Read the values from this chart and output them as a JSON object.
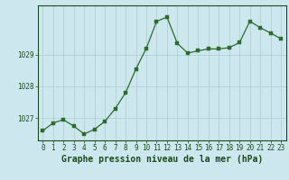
{
  "x": [
    0,
    1,
    2,
    3,
    4,
    5,
    6,
    7,
    8,
    9,
    10,
    11,
    12,
    13,
    14,
    15,
    16,
    17,
    18,
    19,
    20,
    21,
    22,
    23
  ],
  "y": [
    1026.6,
    1026.85,
    1026.95,
    1026.75,
    1026.5,
    1026.65,
    1026.9,
    1027.3,
    1027.8,
    1028.55,
    1029.2,
    1030.05,
    1030.18,
    1029.35,
    1029.05,
    1029.12,
    1029.18,
    1029.18,
    1029.22,
    1029.38,
    1030.05,
    1029.85,
    1029.68,
    1029.5
  ],
  "ylim": [
    1026.3,
    1030.55
  ],
  "yticks": [
    1027,
    1028,
    1029
  ],
  "xticks": [
    0,
    1,
    2,
    3,
    4,
    5,
    6,
    7,
    8,
    9,
    10,
    11,
    12,
    13,
    14,
    15,
    16,
    17,
    18,
    19,
    20,
    21,
    22,
    23
  ],
  "xlabel": "Graphe pression niveau de la mer (hPa)",
  "line_color": "#2d6a2d",
  "marker_color": "#2d6a2d",
  "bg_color": "#cce8ee",
  "grid_color": "#aacccc",
  "title_color": "#1a4a1a",
  "tick_fontsize": 5.5,
  "label_fontsize": 7.0
}
